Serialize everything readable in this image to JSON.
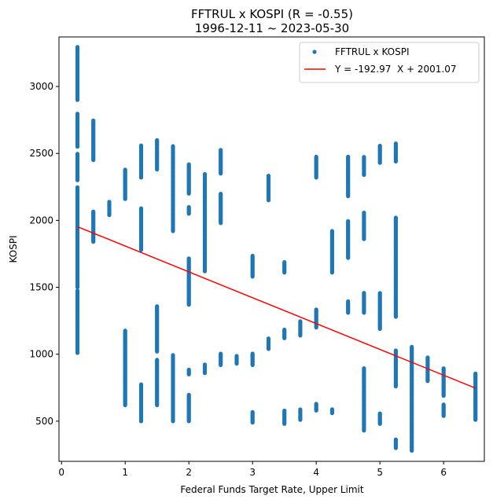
{
  "chart_data": {
    "type": "scatter",
    "title": "FFTRUL x KOSPI (R = -0.55)",
    "subtitle": "1996-12-11 ~ 2023-05-30",
    "xlabel": "Federal Funds Target Rate, Upper Limit",
    "ylabel": "KOSPI",
    "xlim": [
      -0.04,
      6.64
    ],
    "ylim": [
      200,
      3370
    ],
    "x_ticks": [
      "0",
      "1",
      "2",
      "3",
      "4",
      "5",
      "6"
    ],
    "y_ticks": [
      "500",
      "1000",
      "1500",
      "2000",
      "2500",
      "3000"
    ],
    "grid": false,
    "legend": "top-right",
    "colors": {
      "points": "#1f77b4",
      "fit_line": "#ff0000"
    },
    "series": [
      {
        "name": "FFTRUL x KOSPI",
        "kind": "points",
        "clusters": [
          {
            "x": 0.25,
            "y": [
              [
                1010,
                1480
              ],
              [
                1500,
                2250
              ],
              [
                2300,
                2500
              ],
              [
                2550,
                2800
              ],
              [
                2900,
                3300
              ]
            ]
          },
          {
            "x": 0.5,
            "y": [
              [
                1840,
                2070
              ],
              [
                2450,
                2750
              ]
            ]
          },
          {
            "x": 0.75,
            "y": [
              [
                2040,
                2140
              ]
            ]
          },
          {
            "x": 1.0,
            "y": [
              [
                620,
                1180
              ],
              [
                2160,
                2380
              ]
            ]
          },
          {
            "x": 1.25,
            "y": [
              [
                500,
                780
              ],
              [
                1780,
                2090
              ],
              [
                2320,
                2560
              ]
            ]
          },
          {
            "x": 1.5,
            "y": [
              [
                620,
                960
              ],
              [
                1020,
                1360
              ],
              [
                2380,
                2600
              ]
            ]
          },
          {
            "x": 1.75,
            "y": [
              [
                500,
                1000
              ],
              [
                1920,
                2560
              ]
            ]
          },
          {
            "x": 2.0,
            "y": [
              [
                500,
                700
              ],
              [
                850,
                890
              ],
              [
                1370,
                1720
              ],
              [
                2050,
                2100
              ],
              [
                2200,
                2420
              ]
            ]
          },
          {
            "x": 2.25,
            "y": [
              [
                860,
                930
              ],
              [
                1620,
                2350
              ]
            ]
          },
          {
            "x": 2.5,
            "y": [
              [
                920,
                1010
              ],
              [
                1980,
                2200
              ],
              [
                2350,
                2530
              ]
            ]
          },
          {
            "x": 2.75,
            "y": [
              [
                930,
                990
              ]
            ]
          },
          {
            "x": 3.0,
            "y": [
              [
                490,
                570
              ],
              [
                920,
                1010
              ],
              [
                1580,
                1740
              ]
            ]
          },
          {
            "x": 3.25,
            "y": [
              [
                1040,
                1120
              ],
              [
                2150,
                2340
              ]
            ]
          },
          {
            "x": 3.5,
            "y": [
              [
                480,
                580
              ],
              [
                1120,
                1190
              ],
              [
                1610,
                1690
              ]
            ]
          },
          {
            "x": 3.75,
            "y": [
              [
                510,
                590
              ],
              [
                1140,
                1250
              ]
            ]
          },
          {
            "x": 4.0,
            "y": [
              [
                580,
                630
              ],
              [
                1200,
                1340
              ],
              [
                2320,
                2480
              ]
            ]
          },
          {
            "x": 4.25,
            "y": [
              [
                560,
                590
              ],
              [
                1610,
                1920
              ]
            ]
          },
          {
            "x": 4.5,
            "y": [
              [
                1310,
                1400
              ],
              [
                1720,
                2000
              ],
              [
                2180,
                2480
              ]
            ]
          },
          {
            "x": 4.75,
            "y": [
              [
                430,
                900
              ],
              [
                1310,
                1460
              ],
              [
                1860,
                2060
              ],
              [
                2340,
                2480
              ]
            ]
          },
          {
            "x": 5.0,
            "y": [
              [
                480,
                560
              ],
              [
                1190,
                1460
              ],
              [
                2430,
                2560
              ]
            ]
          },
          {
            "x": 5.25,
            "y": [
              [
                300,
                370
              ],
              [
                760,
                1030
              ],
              [
                1280,
                2020
              ],
              [
                2440,
                2580
              ]
            ]
          },
          {
            "x": 5.5,
            "y": [
              [
                280,
                1060
              ]
            ]
          },
          {
            "x": 5.75,
            "y": [
              [
                800,
                980
              ]
            ]
          },
          {
            "x": 6.0,
            "y": [
              [
                540,
                630
              ],
              [
                690,
                900
              ]
            ]
          },
          {
            "x": 6.5,
            "y": [
              [
                510,
                860
              ]
            ]
          }
        ]
      },
      {
        "name": "Y = -192.97  X + 2001.07",
        "kind": "line",
        "slope": -192.97,
        "intercept": 2001.07,
        "x": [
          0.25,
          6.5
        ]
      }
    ]
  }
}
